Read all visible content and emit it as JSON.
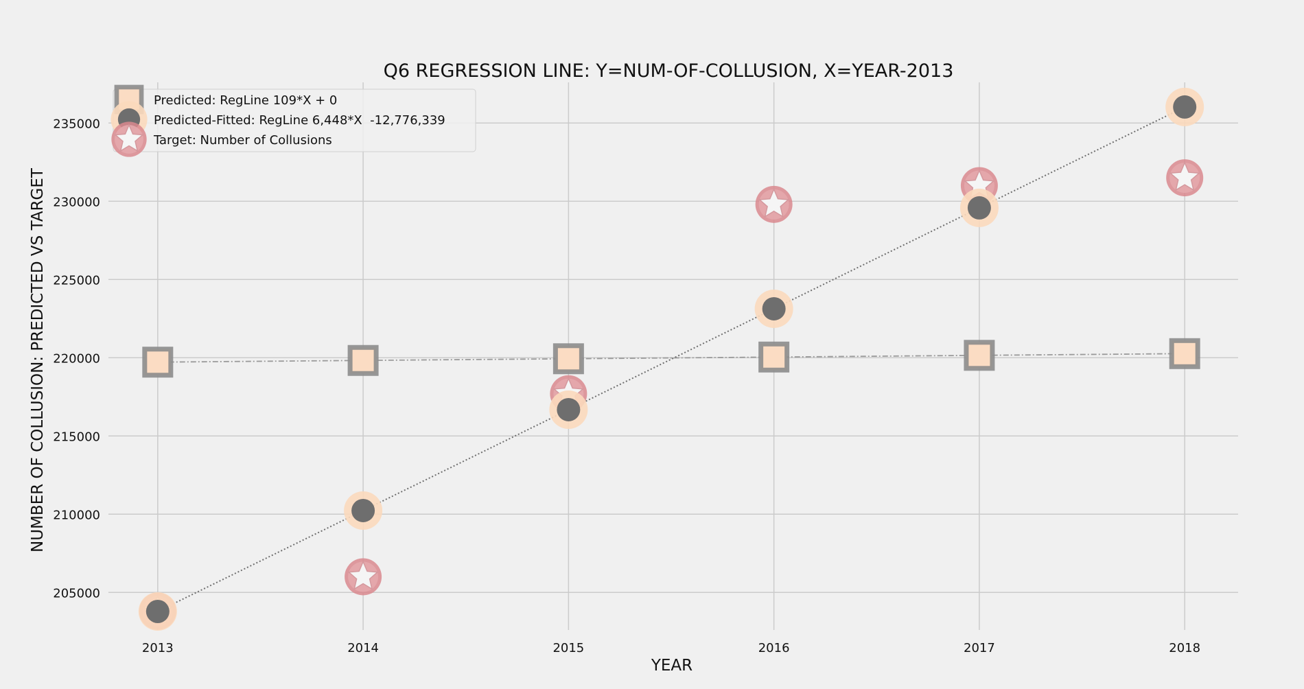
{
  "chart_data": {
    "type": "scatter",
    "title": "Q6 REGRESSION LINE: Y=NUM-OF-COLLUSION, X=YEAR-2013",
    "xlabel": "YEAR",
    "ylabel": "NUMBER OF COLLUSION: PREDICTED VS TARGET",
    "x": [
      2013,
      2014,
      2015,
      2016,
      2017,
      2018
    ],
    "x_ticks": [
      "2013",
      "2014",
      "2015",
      "2016",
      "2017",
      "2018"
    ],
    "xlim": [
      2012.76,
      2018.26
    ],
    "ylim": [
      202600,
      237600
    ],
    "y_ticks": [
      205000,
      210000,
      215000,
      220000,
      225000,
      230000,
      235000
    ],
    "grid": true,
    "legend_position": "top-left",
    "series": [
      {
        "name": "Predicted: RegLine 109*X + 0",
        "marker": "square",
        "line_style": "dashdot",
        "face_color": "#fbdcc3",
        "edge_color": "#8c8c8c",
        "values": [
          219717,
          219826,
          219935,
          220044,
          220153,
          220262
        ]
      },
      {
        "name": "Predicted-Fitted: RegLine 6,448*X  -12,776,339",
        "marker": "circle",
        "line_style": "dotted",
        "face_color": "#6e6e6e",
        "edge_color": "#fbd9bd",
        "values": [
          203785,
          210233,
          216681,
          223129,
          229577,
          236025
        ]
      },
      {
        "name": "Target: Number of Collusions",
        "marker": "star",
        "line_style": "none",
        "face_color": "#f5f5f5",
        "edge_color": "#d9888e",
        "values": [
          203800,
          206000,
          217700,
          229800,
          231000,
          231500
        ]
      }
    ]
  }
}
